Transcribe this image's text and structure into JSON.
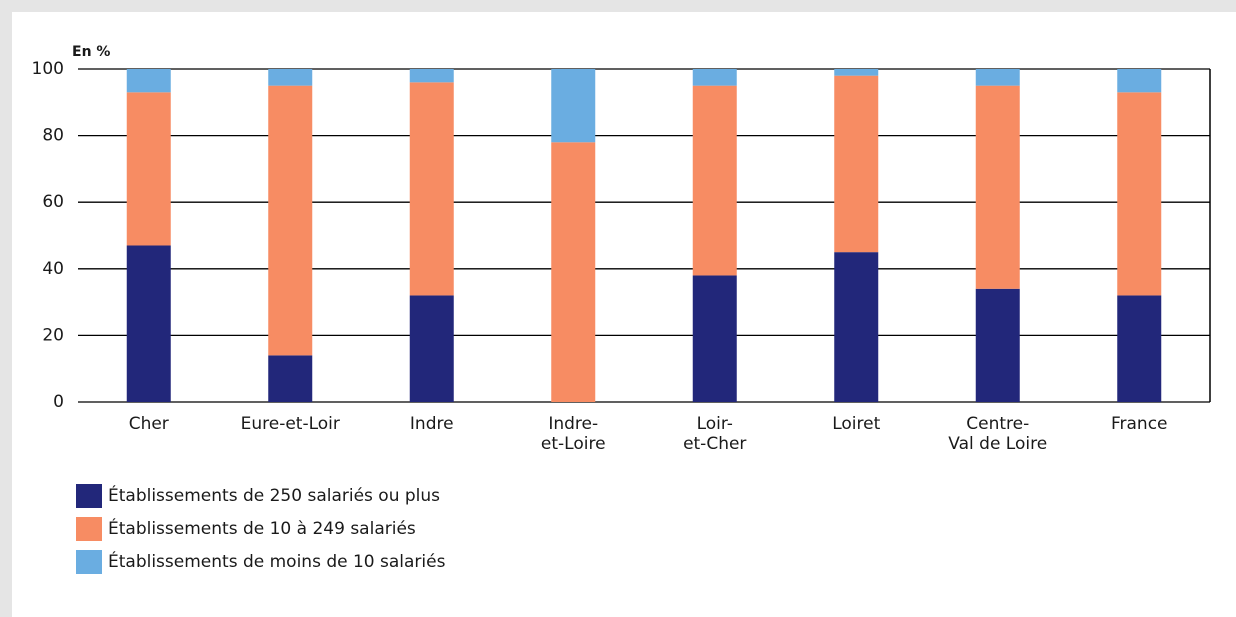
{
  "chart_data": {
    "type": "stacked-bar",
    "unit_label": "En %",
    "categories": [
      "Cher",
      "Eure-et-Loir",
      "Indre",
      "Indre-\net-Loire",
      "Loir-\net-Cher",
      "Loiret",
      "Centre-\nVal de Loire",
      "France"
    ],
    "series": [
      {
        "name": "Établissements de 250 salariés ou plus",
        "color": "#22277a",
        "values": [
          47,
          14,
          32,
          0,
          38,
          45,
          34,
          32
        ]
      },
      {
        "name": "Établissements de 10 à 249 salariés",
        "color": "#f78c63",
        "values": [
          46,
          81,
          64,
          78,
          57,
          53,
          61,
          61
        ]
      },
      {
        "name": "Établissements de moins de 10 salariés",
        "color": "#6aade1",
        "values": [
          7,
          5,
          4,
          22,
          5,
          2,
          5,
          7
        ]
      }
    ],
    "ylim": [
      0,
      100
    ],
    "yticks": [
      0,
      20,
      40,
      60,
      80,
      100
    ],
    "grid": true
  }
}
